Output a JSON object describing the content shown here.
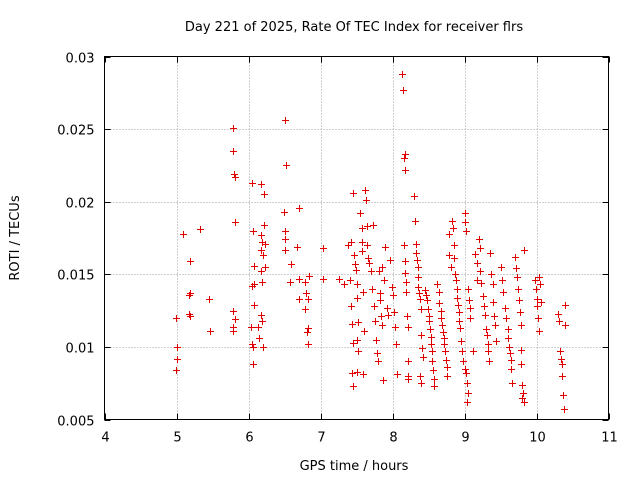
{
  "chart_data": {
    "type": "scatter",
    "title": "Day 221 of 2025, Rate Of TEC Index for receiver flrs",
    "xlabel": "GPS time / hours",
    "ylabel": "ROTI / TECUs",
    "xlim": [
      4,
      11
    ],
    "ylim": [
      0.005,
      0.03
    ],
    "grid": true,
    "marker": "+",
    "color": "#e00000",
    "xticks": [
      4,
      5,
      6,
      7,
      8,
      9,
      10,
      11
    ],
    "xtick_labels": [
      "4",
      "5",
      "6",
      "7",
      "8",
      "9",
      "10",
      "11"
    ],
    "yticks": [
      0.005,
      0.01,
      0.015,
      0.02,
      0.025,
      0.03
    ],
    "ytick_labels": [
      "0.005",
      "0.01",
      "0.015",
      "0.02",
      "0.025",
      "0.03"
    ],
    "series": [
      {
        "name": "ROTI",
        "points": [
          [
            4.99,
            0.012
          ],
          [
            5.0,
            0.01
          ],
          [
            5.0,
            0.0092
          ],
          [
            4.99,
            0.0084
          ],
          [
            5.09,
            0.0178
          ],
          [
            5.17,
            0.0136
          ],
          [
            5.19,
            0.0159
          ],
          [
            5.19,
            0.0137
          ],
          [
            5.18,
            0.0123
          ],
          [
            5.19,
            0.0121
          ],
          [
            5.33,
            0.0181
          ],
          [
            5.45,
            0.0133
          ],
          [
            5.47,
            0.0111
          ],
          [
            5.78,
            0.0251
          ],
          [
            5.79,
            0.0235
          ],
          [
            5.8,
            0.0219
          ],
          [
            5.81,
            0.0217
          ],
          [
            5.81,
            0.0186
          ],
          [
            5.79,
            0.0125
          ],
          [
            5.81,
            0.0119
          ],
          [
            5.78,
            0.0114
          ],
          [
            5.79,
            0.0111
          ],
          [
            6.05,
            0.0213
          ],
          [
            6.06,
            0.018
          ],
          [
            6.07,
            0.0156
          ],
          [
            6.07,
            0.0143
          ],
          [
            6.05,
            0.0142
          ],
          [
            6.07,
            0.0129
          ],
          [
            6.04,
            0.0114
          ],
          [
            6.05,
            0.0102
          ],
          [
            6.06,
            0.01
          ],
          [
            6.06,
            0.0088
          ],
          [
            6.13,
            0.0114
          ],
          [
            6.15,
            0.0106
          ],
          [
            6.17,
            0.0212
          ],
          [
            6.18,
            0.0177
          ],
          [
            6.19,
            0.0172
          ],
          [
            6.18,
            0.0167
          ],
          [
            6.2,
            0.0163
          ],
          [
            6.17,
            0.0152
          ],
          [
            6.19,
            0.0145
          ],
          [
            6.17,
            0.0122
          ],
          [
            6.19,
            0.0118
          ],
          [
            6.2,
            0.01
          ],
          [
            6.22,
            0.0205
          ],
          [
            6.22,
            0.0184
          ],
          [
            6.23,
            0.0171
          ],
          [
            6.23,
            0.0155
          ],
          [
            6.5,
            0.0256
          ],
          [
            6.52,
            0.0225
          ],
          [
            6.49,
            0.0193
          ],
          [
            6.51,
            0.018
          ],
          [
            6.51,
            0.0174
          ],
          [
            6.5,
            0.0167
          ],
          [
            6.59,
            0.0157
          ],
          [
            6.58,
            0.0145
          ],
          [
            6.67,
            0.0169
          ],
          [
            6.7,
            0.0196
          ],
          [
            6.7,
            0.0147
          ],
          [
            6.7,
            0.0133
          ],
          [
            6.79,
            0.0145
          ],
          [
            6.8,
            0.0137
          ],
          [
            6.82,
            0.0133
          ],
          [
            6.84,
            0.0149
          ],
          [
            6.79,
            0.0126
          ],
          [
            6.82,
            0.0113
          ],
          [
            6.81,
            0.011
          ],
          [
            6.82,
            0.0102
          ],
          [
            7.03,
            0.0168
          ],
          [
            7.03,
            0.0147
          ],
          [
            7.26,
            0.0147
          ],
          [
            7.32,
            0.0143
          ],
          [
            7.38,
            0.017
          ],
          [
            7.42,
            0.0172
          ],
          [
            7.45,
            0.0206
          ],
          [
            7.47,
            0.0163
          ],
          [
            7.41,
            0.0146
          ],
          [
            7.43,
            0.0128
          ],
          [
            7.44,
            0.0116
          ],
          [
            7.45,
            0.0103
          ],
          [
            7.44,
            0.0082
          ],
          [
            7.45,
            0.0073
          ],
          [
            7.48,
            0.0157
          ],
          [
            7.49,
            0.0153
          ],
          [
            7.5,
            0.0143
          ],
          [
            7.51,
            0.0134
          ],
          [
            7.52,
            0.0117
          ],
          [
            7.51,
            0.0105
          ],
          [
            7.52,
            0.0097
          ],
          [
            7.51,
            0.0083
          ],
          [
            7.55,
            0.0192
          ],
          [
            7.57,
            0.0182
          ],
          [
            7.57,
            0.0172
          ],
          [
            7.58,
            0.0166
          ],
          [
            7.59,
            0.0138
          ],
          [
            7.6,
            0.0111
          ],
          [
            7.59,
            0.0081
          ],
          [
            7.62,
            0.0208
          ],
          [
            7.63,
            0.0201
          ],
          [
            7.64,
            0.0183
          ],
          [
            7.65,
            0.017
          ],
          [
            7.66,
            0.0161
          ],
          [
            7.68,
            0.0158
          ],
          [
            7.7,
            0.0152
          ],
          [
            7.71,
            0.014
          ],
          [
            7.73,
            0.0184
          ],
          [
            7.74,
            0.0128
          ],
          [
            7.75,
            0.0118
          ],
          [
            7.77,
            0.0105
          ],
          [
            7.78,
            0.0096
          ],
          [
            7.8,
            0.009
          ],
          [
            7.81,
            0.0152
          ],
          [
            7.82,
            0.0137
          ],
          [
            7.83,
            0.0132
          ],
          [
            7.84,
            0.0121
          ],
          [
            7.85,
            0.0115
          ],
          [
            7.86,
            0.0155
          ],
          [
            7.87,
            0.0077
          ],
          [
            7.88,
            0.0146
          ],
          [
            7.9,
            0.0169
          ],
          [
            7.93,
            0.0127
          ],
          [
            7.94,
            0.0122
          ],
          [
            7.97,
            0.016
          ],
          [
            7.99,
            0.0141
          ],
          [
            8.0,
            0.0136
          ],
          [
            8.02,
            0.0124
          ],
          [
            8.03,
            0.0114
          ],
          [
            8.05,
            0.0102
          ],
          [
            8.06,
            0.0081
          ],
          [
            8.13,
            0.0288
          ],
          [
            8.14,
            0.0277
          ],
          [
            8.17,
            0.0233
          ],
          [
            8.16,
            0.023
          ],
          [
            8.17,
            0.0222
          ],
          [
            8.16,
            0.017
          ],
          [
            8.17,
            0.0159
          ],
          [
            8.18,
            0.0151
          ],
          [
            8.19,
            0.0145
          ],
          [
            8.19,
            0.0138
          ],
          [
            8.2,
            0.0121
          ],
          [
            8.21,
            0.0114
          ],
          [
            8.22,
            0.009
          ],
          [
            8.21,
            0.008
          ],
          [
            8.22,
            0.0078
          ],
          [
            8.3,
            0.0204
          ],
          [
            8.31,
            0.0187
          ],
          [
            8.32,
            0.0171
          ],
          [
            8.33,
            0.0165
          ],
          [
            8.34,
            0.016
          ],
          [
            8.35,
            0.0155
          ],
          [
            8.36,
            0.0148
          ],
          [
            8.36,
            0.0141
          ],
          [
            8.37,
            0.0137
          ],
          [
            8.38,
            0.0133
          ],
          [
            8.39,
            0.0126
          ],
          [
            8.4,
            0.0108
          ],
          [
            8.41,
            0.0099
          ],
          [
            8.42,
            0.0093
          ],
          [
            8.38,
            0.008
          ],
          [
            8.4,
            0.0075
          ],
          [
            8.45,
            0.0139
          ],
          [
            8.47,
            0.0136
          ],
          [
            8.48,
            0.0132
          ],
          [
            8.49,
            0.0126
          ],
          [
            8.5,
            0.0121
          ],
          [
            8.51,
            0.0118
          ],
          [
            8.52,
            0.0112
          ],
          [
            8.53,
            0.0107
          ],
          [
            8.54,
            0.0102
          ],
          [
            8.55,
            0.0097
          ],
          [
            8.55,
            0.009
          ],
          [
            8.56,
            0.0084
          ],
          [
            8.57,
            0.0078
          ],
          [
            8.58,
            0.0073
          ],
          [
            8.62,
            0.0143
          ],
          [
            8.64,
            0.0138
          ],
          [
            8.65,
            0.013
          ],
          [
            8.67,
            0.0125
          ],
          [
            8.68,
            0.012
          ],
          [
            8.69,
            0.0115
          ],
          [
            8.7,
            0.011
          ],
          [
            8.71,
            0.0106
          ],
          [
            8.72,
            0.0102
          ],
          [
            8.73,
            0.0097
          ],
          [
            8.74,
            0.0091
          ],
          [
            8.75,
            0.0086
          ],
          [
            8.76,
            0.008
          ],
          [
            8.78,
            0.0178
          ],
          [
            8.79,
            0.0163
          ],
          [
            8.81,
            0.0155
          ],
          [
            8.83,
            0.0187
          ],
          [
            8.84,
            0.0182
          ],
          [
            8.85,
            0.017
          ],
          [
            8.86,
            0.0161
          ],
          [
            8.87,
            0.015
          ],
          [
            8.88,
            0.0146
          ],
          [
            8.89,
            0.014
          ],
          [
            8.9,
            0.0134
          ],
          [
            8.91,
            0.0129
          ],
          [
            8.92,
            0.0124
          ],
          [
            8.93,
            0.0118
          ],
          [
            8.94,
            0.0113
          ],
          [
            8.95,
            0.0104
          ],
          [
            8.97,
            0.0097
          ],
          [
            8.98,
            0.009
          ],
          [
            9.0,
            0.0085
          ],
          [
            9.02,
            0.0082
          ],
          [
            9.04,
            0.0075
          ],
          [
            9.05,
            0.0068
          ],
          [
            9.03,
            0.0062
          ],
          [
            9.0,
            0.0192
          ],
          [
            9.01,
            0.0186
          ],
          [
            9.02,
            0.018
          ],
          [
            9.05,
            0.014
          ],
          [
            9.06,
            0.0132
          ],
          [
            9.07,
            0.0127
          ],
          [
            9.08,
            0.012
          ],
          [
            9.12,
            0.0097
          ],
          [
            9.15,
            0.0164
          ],
          [
            9.17,
            0.0158
          ],
          [
            9.18,
            0.0146
          ],
          [
            9.2,
            0.0174
          ],
          [
            9.21,
            0.0168
          ],
          [
            9.22,
            0.0152
          ],
          [
            9.23,
            0.0144
          ],
          [
            9.25,
            0.0135
          ],
          [
            9.27,
            0.0128
          ],
          [
            9.29,
            0.0122
          ],
          [
            9.3,
            0.0112
          ],
          [
            9.31,
            0.0108
          ],
          [
            9.32,
            0.0102
          ],
          [
            9.33,
            0.0097
          ],
          [
            9.34,
            0.009
          ],
          [
            9.35,
            0.0165
          ],
          [
            9.37,
            0.015
          ],
          [
            9.39,
            0.0143
          ],
          [
            9.4,
            0.0131
          ],
          [
            9.41,
            0.0121
          ],
          [
            9.43,
            0.0115
          ],
          [
            9.44,
            0.0104
          ],
          [
            9.5,
            0.0155
          ],
          [
            9.52,
            0.0146
          ],
          [
            9.54,
            0.0138
          ],
          [
            9.56,
            0.0127
          ],
          [
            9.58,
            0.012
          ],
          [
            9.6,
            0.0112
          ],
          [
            9.61,
            0.0106
          ],
          [
            9.62,
            0.01
          ],
          [
            9.63,
            0.0096
          ],
          [
            9.64,
            0.0091
          ],
          [
            9.65,
            0.0085
          ],
          [
            9.66,
            0.0075
          ],
          [
            9.7,
            0.0162
          ],
          [
            9.71,
            0.0154
          ],
          [
            9.73,
            0.0148
          ],
          [
            9.74,
            0.014
          ],
          [
            9.76,
            0.0132
          ],
          [
            9.77,
            0.0124
          ],
          [
            9.78,
            0.0115
          ],
          [
            9.79,
            0.0098
          ],
          [
            9.79,
            0.0088
          ],
          [
            9.8,
            0.0074
          ],
          [
            9.81,
            0.0068
          ],
          [
            9.8,
            0.0065
          ],
          [
            9.82,
            0.0167
          ],
          [
            9.83,
            0.0062
          ],
          [
            9.98,
            0.0146
          ],
          [
            9.99,
            0.014
          ],
          [
            10.0,
            0.0133
          ],
          [
            10.01,
            0.0128
          ],
          [
            10.02,
            0.012
          ],
          [
            10.03,
            0.0111
          ],
          [
            10.04,
            0.0148
          ],
          [
            10.05,
            0.0143
          ],
          [
            10.06,
            0.0131
          ],
          [
            10.3,
            0.0123
          ],
          [
            10.31,
            0.0118
          ],
          [
            10.33,
            0.0097
          ],
          [
            10.34,
            0.0092
          ],
          [
            10.35,
            0.0088
          ],
          [
            10.36,
            0.008
          ],
          [
            10.37,
            0.0067
          ],
          [
            10.38,
            0.0057
          ],
          [
            10.4,
            0.0129
          ],
          [
            10.39,
            0.0115
          ]
        ]
      }
    ]
  }
}
